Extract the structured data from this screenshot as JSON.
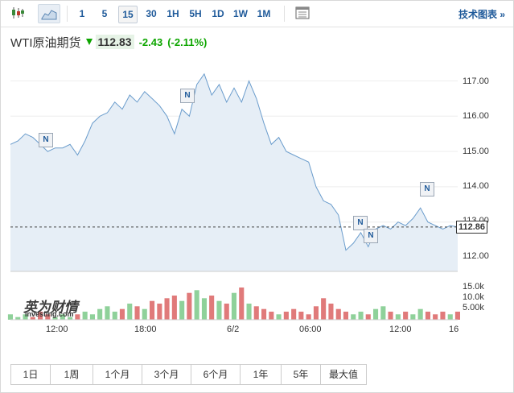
{
  "toolbar": {
    "timeframes": [
      "1",
      "5",
      "15",
      "30",
      "1H",
      "5H",
      "1D",
      "1W",
      "1M"
    ],
    "selected": "15",
    "tech_chart": "技术图表 »"
  },
  "instrument": {
    "name": "WTI原油期货",
    "price": "112.83",
    "change": "-2.43",
    "change_pct": "(-2.11%)",
    "up_color": "#0ea600"
  },
  "chart_data": {
    "type": "area",
    "y_ticks": [
      "117.00",
      "116.00",
      "115.00",
      "114.00",
      "113.00",
      "112.00"
    ],
    "ylim": [
      111.6,
      117.4
    ],
    "current_price_tag": "112.86",
    "x_ticks": [
      "12:00",
      "18:00",
      "6/2",
      "06:00",
      "12:00",
      "16"
    ],
    "volume_ticks": [
      "15.0k",
      "10.0k",
      "5.00k"
    ],
    "news_flag_label": "N",
    "series": [
      {
        "values": [
          115.2,
          115.3,
          115.5,
          115.4,
          115.2,
          115.0,
          115.1,
          115.1,
          115.2,
          114.9,
          115.3,
          115.8,
          116.0,
          116.1,
          116.4,
          116.2,
          116.6,
          116.4,
          116.7,
          116.5,
          116.3,
          116.0,
          115.5,
          116.2,
          116.0,
          116.9,
          117.2,
          116.6,
          116.9,
          116.4,
          116.8,
          116.4,
          117.0,
          116.5,
          115.8,
          115.2,
          115.4,
          115.0,
          114.9,
          114.8,
          114.7,
          114.0,
          113.6,
          113.5,
          113.2,
          112.2,
          112.4,
          112.7,
          112.3,
          112.8,
          112.9,
          112.8,
          113.0,
          112.9,
          113.1,
          113.4,
          113.0,
          112.9,
          112.8,
          112.9,
          112.86
        ]
      }
    ],
    "volume_values": [
      2,
      1,
      2,
      1,
      3,
      2,
      1,
      2,
      1,
      2,
      3,
      2,
      4,
      5,
      3,
      4,
      6,
      5,
      4,
      7,
      6,
      8,
      9,
      7,
      10,
      11,
      8,
      9,
      7,
      6,
      10,
      12,
      6,
      5,
      4,
      3,
      2,
      3,
      4,
      3,
      2,
      5,
      8,
      6,
      4,
      3,
      2,
      3,
      2,
      4,
      5,
      3,
      2,
      3,
      2,
      4,
      3,
      2,
      3,
      2,
      3
    ]
  },
  "ranges": [
    "1日",
    "1周",
    "1个月",
    "3个月",
    "6个月",
    "1年",
    "5年",
    "最大值"
  ],
  "logo": {
    "cn": "英为财情",
    "en": "Investing.com"
  }
}
